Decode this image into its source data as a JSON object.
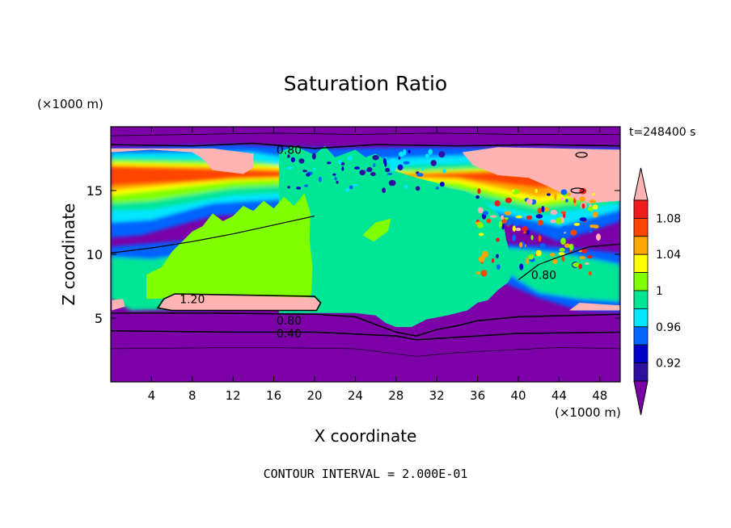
{
  "chart_data": {
    "type": "heatmap",
    "title": "Saturation Ratio",
    "xlabel": "X coordinate",
    "ylabel": "Z coordinate",
    "x_units": "(×1000 m)",
    "y_units": "(×1000 m)",
    "time_label": "t=248400 s",
    "footer": "CONTOUR INTERVAL = 2.000E-01",
    "xlim": [
      0,
      50
    ],
    "ylim": [
      0,
      20
    ],
    "x_ticks": [
      4,
      8,
      12,
      16,
      20,
      24,
      28,
      32,
      36,
      40,
      44,
      48
    ],
    "y_ticks": [
      5,
      10,
      15
    ],
    "colorbar": {
      "levels": [
        0.92,
        0.94,
        0.96,
        0.98,
        1.0,
        1.02,
        1.04,
        1.06,
        1.08,
        1.1
      ],
      "colors": [
        "#7b00a8",
        "#2c0fa0",
        "#0000c8",
        "#0064ff",
        "#00e6ff",
        "#00e696",
        "#7fff00",
        "#ffff00",
        "#ffa500",
        "#ff4500",
        "#ee1c1c",
        "#ffb3b3"
      ],
      "tick_labels": [
        "0.92",
        "0.96",
        "1",
        "1.04",
        "1.08"
      ]
    },
    "contour_labels": [
      {
        "text": "0.80",
        "x": 17.5,
        "z": 18.2
      },
      {
        "text": "1.20",
        "x": 8.0,
        "z": 6.5
      },
      {
        "text": "0.80",
        "x": 17.5,
        "z": 4.8
      },
      {
        "text": "0.40",
        "x": 17.5,
        "z": 3.8
      },
      {
        "text": "0.80",
        "x": 42.5,
        "z": 8.4
      }
    ],
    "regions": [
      {
        "name": "upper-dry-layer",
        "value_range": "<0.90",
        "z_range": [
          18.5,
          20
        ]
      },
      {
        "name": "upper-supersaturated-band",
        "value_range": "1.02-1.10+",
        "z_range": [
          13,
          18
        ]
      },
      {
        "name": "left-cloud-mass",
        "value_range": "1.00-1.02",
        "x_range": [
          3,
          20
        ],
        "z_range": [
          6.5,
          13
        ]
      },
      {
        "name": "central-cloud-mass",
        "value_range": "0.98-1.00",
        "x_range": [
          16,
          40
        ],
        "z_range": [
          5,
          19
        ]
      },
      {
        "name": "cloud-base-supersaturation",
        "value_range": ">1.10",
        "x_range": [
          4,
          20
        ],
        "z_range": [
          5.7,
          6.6
        ]
      },
      {
        "name": "lower-dry-layer",
        "value_range": "<0.90",
        "z_range": [
          0,
          5
        ]
      }
    ]
  }
}
